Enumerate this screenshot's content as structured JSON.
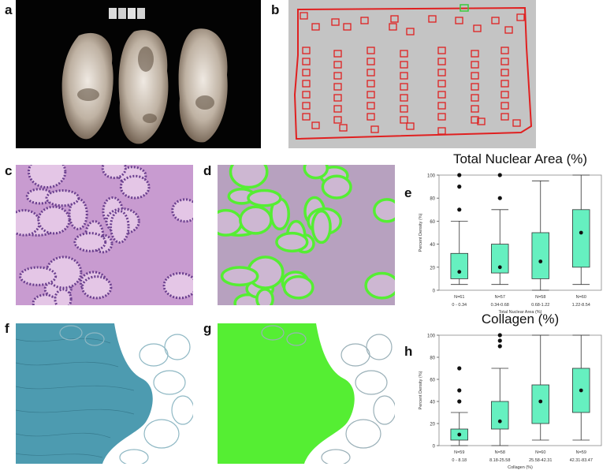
{
  "panels": {
    "a": "a",
    "b": "b",
    "c": "c",
    "d": "d",
    "e": "e",
    "f": "f",
    "g": "g",
    "h": "h"
  },
  "colors": {
    "box_fill": "#66f0c0",
    "box_stroke": "#333333",
    "overlay_green": "#55ee33",
    "grid_red": "#e02020",
    "he_pink": "#c89bd0",
    "he_purple": "#6a3f8e",
    "trichrome_blue": "#4d9bb0",
    "tissue_beige": "#d8cfc4"
  },
  "chart_data": [
    {
      "id": "e",
      "type": "box",
      "title": "Total Nuclear Area (%)",
      "xlabel": "Total Nuclear Area (%)",
      "ylabel": "Percent Density (%)",
      "ylim": [
        0,
        100
      ],
      "yticks": [
        0,
        20,
        40,
        60,
        80,
        100
      ],
      "categories": [
        "0 - 0.34",
        "0.34-0.68",
        "0.68-1.22",
        "1.22-8.54"
      ],
      "n_labels": [
        "N=61",
        "N=57",
        "N=58",
        "N=60"
      ],
      "boxes": [
        {
          "min": 5,
          "q1": 10,
          "median": 16,
          "q3": 32,
          "max": 60,
          "outliers": [
            70,
            90,
            100
          ]
        },
        {
          "min": 5,
          "q1": 15,
          "median": 20,
          "q3": 40,
          "max": 70,
          "outliers": [
            80,
            100
          ]
        },
        {
          "min": 0,
          "q1": 10,
          "median": 25,
          "q3": 50,
          "max": 95,
          "outliers": []
        },
        {
          "min": 5,
          "q1": 20,
          "median": 50,
          "q3": 70,
          "max": 100,
          "outliers": []
        }
      ]
    },
    {
      "id": "h",
      "type": "box",
      "title": "Collagen (%)",
      "xlabel": "Collagen (%)",
      "ylabel": "Percent Density (%)",
      "ylim": [
        0,
        100
      ],
      "yticks": [
        0,
        20,
        40,
        60,
        80,
        100
      ],
      "categories": [
        "0 - 8.18",
        "8.18-25.58",
        "25.58-42.31",
        "42.31-83.47"
      ],
      "n_labels": [
        "N=59",
        "N=58",
        "N=60",
        "N=59"
      ],
      "boxes": [
        {
          "min": 0,
          "q1": 5,
          "median": 10,
          "q3": 15,
          "max": 30,
          "outliers": [
            40,
            50,
            70
          ]
        },
        {
          "min": 0,
          "q1": 15,
          "median": 22,
          "q3": 40,
          "max": 70,
          "outliers": [
            90,
            95,
            100
          ]
        },
        {
          "min": 5,
          "q1": 20,
          "median": 40,
          "q3": 55,
          "max": 100,
          "outliers": []
        },
        {
          "min": 5,
          "q1": 30,
          "median": 50,
          "q3": 70,
          "max": 100,
          "outliers": []
        }
      ]
    }
  ]
}
